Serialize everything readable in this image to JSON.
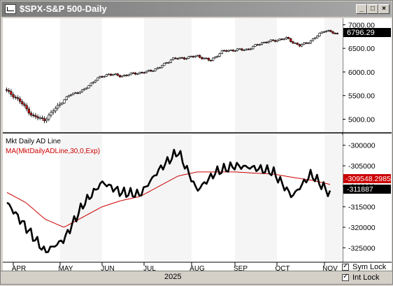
{
  "window": {
    "title": "$SPX-S&P 500-Daily",
    "minimize": "_",
    "maximize": "□",
    "close": "×"
  },
  "price_panel": {
    "last_price": "6796.29",
    "y_ticks": [
      "7000.00",
      "6500.00",
      "6000.00",
      "5500.00",
      "5000.00"
    ],
    "price_box_color": "#000000"
  },
  "indicator_panel": {
    "title": "Mkt Daily AD Line",
    "ma_label": "MA(MktDailyADLine,30,0,Exp)",
    "ma_color": "#cc0000",
    "ma_last": "-309548.2985",
    "line_last": "-311887",
    "y_ticks": [
      "-300000",
      "-305000",
      "-310000",
      "-315000",
      "-320000",
      "-325000"
    ]
  },
  "x_axis": {
    "months": [
      "APR",
      "MAY",
      "JUN",
      "JUL",
      "AUG",
      "SEP",
      "OCT",
      "NOV"
    ],
    "year": "2025"
  },
  "controls": {
    "sym_lock": "Sym Lock",
    "int_lock": "Int Lock"
  },
  "chart_data": [
    {
      "type": "candlestick",
      "title": "$SPX-S&P 500-Daily",
      "ylim": [
        4800,
        7050
      ],
      "x": [
        "Apr",
        "Apr",
        "Apr",
        "Apr",
        "Apr",
        "Apr",
        "May",
        "May",
        "May",
        "May",
        "Jun",
        "Jun",
        "Jun",
        "Jul",
        "Jul",
        "Jul",
        "Aug",
        "Aug",
        "Aug",
        "Sep",
        "Sep",
        "Sep",
        "Oct",
        "Oct",
        "Oct",
        "Oct",
        "Oct"
      ],
      "values": [
        5600,
        5396,
        5074,
        4982,
        5280,
        5525,
        5604,
        5844,
        5958,
        5912,
        5970,
        6000,
        6092,
        6279,
        6297,
        6340,
        6238,
        6445,
        6466,
        6481,
        6615,
        6664,
        6715,
        6552,
        6671,
        6890,
        6796
      ]
    },
    {
      "type": "line",
      "title": "Mkt Daily AD Line",
      "ylim": [
        -328000,
        -298000
      ],
      "x": [
        "Apr",
        "Apr",
        "Apr",
        "Apr",
        "May",
        "May",
        "Jun",
        "Jun",
        "Jul",
        "Jul",
        "Aug",
        "Aug",
        "Sep",
        "Sep",
        "Oct",
        "Oct",
        "Oct",
        "Nov"
      ],
      "series": [
        {
          "name": "Mkt Daily AD Line",
          "values": [
            -314000,
            -320000,
            -326000,
            -323000,
            -314500,
            -309000,
            -311500,
            -312000,
            -306000,
            -301500,
            -311000,
            -306500,
            -305000,
            -305500,
            -306500,
            -312500,
            -307000,
            -311887
          ]
        },
        {
          "name": "MA(MktDailyADLine,30,0,Exp)",
          "values": [
            -311500,
            -314000,
            -318000,
            -320000,
            -317500,
            -315000,
            -313500,
            -312500,
            -310000,
            -307500,
            -306500,
            -306500,
            -306500,
            -306800,
            -307000,
            -307800,
            -308500,
            -309548.2985
          ]
        }
      ]
    }
  ]
}
